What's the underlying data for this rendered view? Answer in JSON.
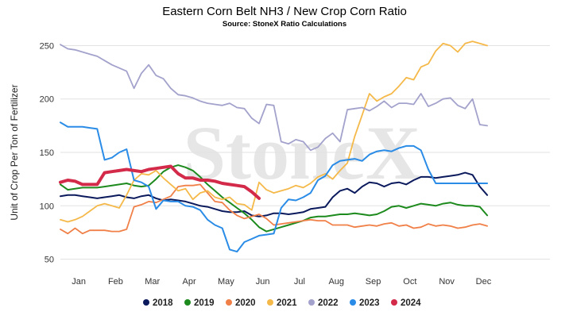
{
  "chart_data": {
    "type": "line",
    "title": "Eastern Corn Belt NH3 / New Crop Corn Ratio",
    "subtitle": "Source: StoneX Ratio Calculations",
    "ylabel": "Unit of Crop Per Ton of Fertilizer",
    "watermark": "StoneX",
    "ylim": [
      40,
      260
    ],
    "yticks": [
      50,
      100,
      150,
      200,
      250
    ],
    "x_range": [
      0,
      12
    ],
    "month_labels": [
      "Jan",
      "Feb",
      "Mar",
      "Apr",
      "May",
      "Jun",
      "Jul",
      "Aug",
      "Sep",
      "Oct",
      "Nov",
      "Dec"
    ],
    "grid": "horizontal",
    "legend_position": "bottom",
    "series": [
      {
        "name": "2018",
        "color": "#0b1a5c",
        "width": 2,
        "x": [
          0,
          0.2,
          0.4,
          0.6,
          0.8,
          1,
          1.2,
          1.4,
          1.6,
          1.8,
          2,
          2.2,
          2.4,
          2.6,
          2.8,
          3,
          3.2,
          3.4,
          3.6,
          3.8,
          4,
          4.2,
          4.4,
          4.6,
          4.8,
          5,
          5.2,
          5.4,
          5.6,
          5.8,
          6,
          6.2,
          6.4,
          6.6,
          6.8,
          7,
          7.2,
          7.4,
          7.6,
          7.8,
          8,
          8.2,
          8.4,
          8.6,
          8.8,
          9,
          9.2,
          9.4,
          9.6,
          9.8,
          10,
          10.2,
          10.4,
          10.6,
          10.8,
          11,
          11.2,
          11.4,
          11.6
        ],
        "y": [
          109,
          110,
          110,
          109,
          108,
          107,
          108,
          109,
          110,
          108,
          107,
          109,
          110,
          107,
          105,
          106,
          105,
          104,
          102,
          100,
          99,
          97,
          95,
          94,
          94,
          95,
          91,
          90,
          91,
          93,
          93,
          92,
          93,
          94,
          97,
          98,
          99,
          108,
          114,
          116,
          112,
          118,
          122,
          121,
          118,
          121,
          122,
          120,
          124,
          127,
          127,
          126,
          127,
          128,
          129,
          131,
          129,
          118,
          110
        ]
      },
      {
        "name": "2019",
        "color": "#1d8a1d",
        "width": 2,
        "x": [
          0,
          0.2,
          0.4,
          0.6,
          0.8,
          1,
          1.2,
          1.4,
          1.6,
          1.8,
          2,
          2.2,
          2.4,
          2.6,
          2.8,
          3,
          3.2,
          3.4,
          3.6,
          3.8,
          4,
          4.2,
          4.4,
          4.6,
          4.8,
          5,
          5.2,
          5.4,
          5.6,
          5.8,
          6,
          6.2,
          6.4,
          6.6,
          6.8,
          7,
          7.2,
          7.4,
          7.6,
          7.8,
          8,
          8.2,
          8.4,
          8.6,
          8.8,
          9,
          9.2,
          9.4,
          9.6,
          9.8,
          10,
          10.2,
          10.4,
          10.6,
          10.8,
          11,
          11.2,
          11.4,
          11.6
        ],
        "y": [
          120,
          115,
          116,
          117,
          117,
          117,
          118,
          119,
          120,
          121,
          119,
          118,
          119,
          125,
          132,
          136,
          138,
          136,
          133,
          127,
          120,
          114,
          108,
          103,
          98,
          93,
          87,
          80,
          76,
          78,
          80,
          82,
          84,
          86,
          89,
          90,
          90,
          91,
          92,
          92,
          93,
          92,
          91,
          92,
          95,
          99,
          100,
          98,
          100,
          102,
          101,
          100,
          102,
          103,
          101,
          100,
          100,
          99,
          91
        ]
      },
      {
        "name": "2020",
        "color": "#f08048",
        "width": 1.8,
        "x": [
          0,
          0.2,
          0.4,
          0.6,
          0.8,
          1,
          1.2,
          1.4,
          1.6,
          1.8,
          2,
          2.2,
          2.4,
          2.6,
          2.8,
          3,
          3.2,
          3.4,
          3.6,
          3.8,
          4,
          4.2,
          4.4,
          4.6,
          4.8,
          5,
          5.2,
          5.4,
          5.6,
          5.8,
          6,
          6.2,
          6.4,
          6.6,
          6.8,
          7,
          7.2,
          7.4,
          7.6,
          7.8,
          8,
          8.2,
          8.4,
          8.6,
          8.8,
          9,
          9.2,
          9.4,
          9.6,
          9.8,
          10,
          10.2,
          10.4,
          10.6,
          10.8,
          11,
          11.2,
          11.4,
          11.6
        ],
        "y": [
          78,
          74,
          79,
          74,
          77,
          77,
          77,
          76,
          76,
          78,
          99,
          101,
          104,
          103,
          106,
          109,
          118,
          119,
          119,
          120,
          112,
          104,
          103,
          96,
          91,
          88,
          90,
          92,
          88,
          82,
          83,
          84,
          85,
          86,
          87,
          86,
          86,
          82,
          82,
          82,
          80,
          81,
          82,
          81,
          83,
          84,
          81,
          82,
          79,
          80,
          83,
          81,
          82,
          81,
          79,
          80,
          82,
          83,
          81
        ]
      },
      {
        "name": "2021",
        "color": "#f5b94a",
        "width": 1.8,
        "x": [
          0,
          0.2,
          0.4,
          0.6,
          0.8,
          1,
          1.2,
          1.4,
          1.6,
          1.8,
          2,
          2.2,
          2.4,
          2.6,
          2.8,
          3,
          3.2,
          3.4,
          3.6,
          3.8,
          4,
          4.2,
          4.4,
          4.6,
          4.8,
          5,
          5.2,
          5.4,
          5.6,
          5.8,
          6,
          6.2,
          6.4,
          6.6,
          6.8,
          7,
          7.2,
          7.4,
          7.6,
          7.8,
          8,
          8.2,
          8.4,
          8.6,
          8.8,
          9,
          9.2,
          9.4,
          9.6,
          9.8,
          10,
          10.2,
          10.4,
          10.6,
          10.8,
          11,
          11.2,
          11.4,
          11.6
        ],
        "y": [
          87,
          85,
          87,
          90,
          95,
          100,
          102,
          100,
          98,
          110,
          124,
          130,
          129,
          133,
          126,
          120,
          114,
          116,
          106,
          112,
          114,
          108,
          106,
          108,
          102,
          101,
          96,
          122,
          115,
          112,
          114,
          116,
          119,
          117,
          121,
          127,
          130,
          125,
          133,
          140,
          165,
          185,
          205,
          198,
          202,
          205,
          212,
          220,
          218,
          230,
          233,
          245,
          252,
          250,
          244,
          252,
          254,
          252,
          250
        ]
      },
      {
        "name": "2022",
        "color": "#a3a2cc",
        "width": 1.8,
        "x": [
          0,
          0.2,
          0.4,
          0.6,
          0.8,
          1,
          1.2,
          1.4,
          1.6,
          1.8,
          2,
          2.2,
          2.4,
          2.6,
          2.8,
          3,
          3.2,
          3.4,
          3.6,
          3.8,
          4,
          4.2,
          4.4,
          4.6,
          4.8,
          5,
          5.2,
          5.4,
          5.6,
          5.8,
          6,
          6.2,
          6.4,
          6.6,
          6.8,
          7,
          7.2,
          7.4,
          7.6,
          7.8,
          8,
          8.2,
          8.4,
          8.6,
          8.8,
          9,
          9.2,
          9.4,
          9.6,
          9.8,
          10,
          10.2,
          10.4,
          10.6,
          10.8,
          11,
          11.2,
          11.4,
          11.6
        ],
        "y": [
          251,
          247,
          246,
          244,
          242,
          240,
          236,
          232,
          229,
          226,
          210,
          224,
          232,
          222,
          219,
          210,
          204,
          203,
          201,
          198,
          196,
          195,
          194,
          196,
          192,
          191,
          182,
          177,
          195,
          194,
          160,
          158,
          162,
          160,
          152,
          155,
          163,
          168,
          160,
          190,
          191,
          192,
          189,
          193,
          198,
          192,
          196,
          196,
          195,
          205,
          193,
          196,
          200,
          201,
          194,
          191,
          200,
          176,
          175
        ]
      },
      {
        "name": "2023",
        "color": "#2a8ce6",
        "width": 2,
        "x": [
          0,
          0.2,
          0.4,
          0.6,
          0.8,
          1,
          1.2,
          1.4,
          1.6,
          1.8,
          2,
          2.2,
          2.4,
          2.6,
          2.8,
          3,
          3.2,
          3.4,
          3.6,
          3.8,
          4,
          4.2,
          4.4,
          4.6,
          4.8,
          5,
          5.2,
          5.4,
          5.6,
          5.8,
          6,
          6.2,
          6.4,
          6.6,
          6.8,
          7,
          7.2,
          7.4,
          7.6,
          7.8,
          8,
          8.2,
          8.4,
          8.6,
          8.8,
          9,
          9.2,
          9.4,
          9.6,
          9.8,
          10,
          10.2,
          10.4,
          10.6,
          10.8,
          11,
          11.2,
          11.4,
          11.6
        ],
        "y": [
          178,
          174,
          174,
          174,
          173,
          172,
          143,
          145,
          150,
          153,
          124,
          122,
          118,
          97,
          105,
          104,
          104,
          100,
          99,
          96,
          87,
          82,
          79,
          59,
          57,
          66,
          69,
          72,
          73,
          74,
          98,
          106,
          105,
          108,
          112,
          124,
          128,
          138,
          142,
          143,
          144,
          142,
          148,
          151,
          152,
          151,
          154,
          156,
          156,
          152,
          134,
          121,
          121,
          121,
          121,
          121,
          121,
          121,
          121
        ]
      },
      {
        "name": "2024",
        "color": "#d42a4a",
        "width": 4,
        "x": [
          0,
          0.2,
          0.4,
          0.6,
          0.8,
          1,
          1.2,
          1.4,
          1.6,
          1.8,
          2,
          2.2,
          2.4,
          2.6,
          2.8,
          3,
          3.2,
          3.4,
          3.6,
          3.8,
          4,
          4.2,
          4.4,
          4.6,
          4.8,
          5,
          5.2,
          5.4
        ],
        "y": [
          122,
          124,
          123,
          120,
          120,
          120,
          131,
          132,
          133,
          134,
          133,
          132,
          134,
          135,
          136,
          137,
          130,
          126,
          126,
          124,
          124,
          123,
          121,
          120,
          119,
          118,
          113,
          107
        ]
      }
    ]
  }
}
